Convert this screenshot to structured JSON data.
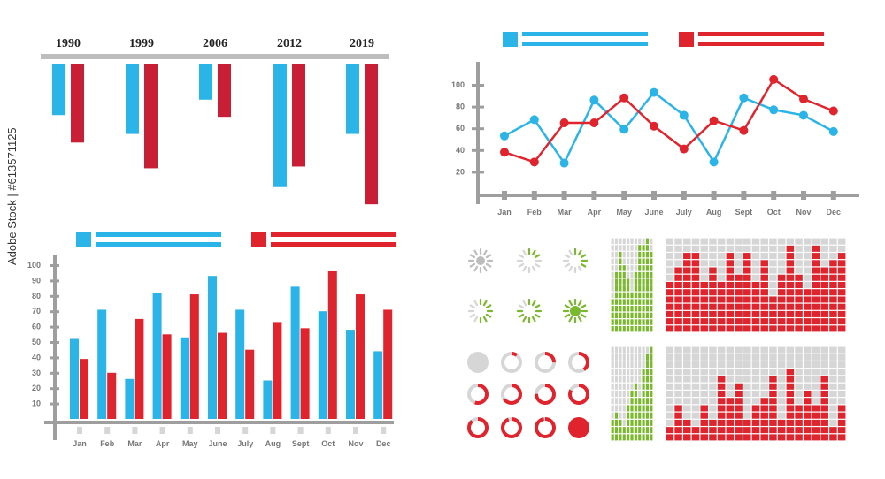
{
  "colors": {
    "blue": "#2ab4e8",
    "red": "#e0242e",
    "dark_red": "#c81f37",
    "green": "#7ab82e",
    "gray": "#bdbdbd",
    "light_gray": "#d6d6d6",
    "axis": "#9e9e9e"
  },
  "watermark": "Adobe Stock | #613571125",
  "chart_data": [
    {
      "type": "bar",
      "orientation": "downward",
      "categories": [
        "1990",
        "1999",
        "2006",
        "2012",
        "2019"
      ],
      "series": [
        {
          "values": [
            30,
            41,
            21,
            72,
            41
          ]
        },
        {
          "values": [
            46,
            61,
            31,
            60,
            82
          ]
        }
      ],
      "ylim": [
        0,
        85
      ]
    },
    {
      "type": "line",
      "categories": [
        "Jan",
        "Feb",
        "Mar",
        "Apr",
        "May",
        "June",
        "July",
        "Aug",
        "Sept",
        "Oct",
        "Nov",
        "Dec"
      ],
      "yticks": [
        20,
        40,
        60,
        80,
        100
      ],
      "ylim": [
        0,
        110
      ],
      "series": [
        {
          "values": [
            53,
            68,
            28,
            86,
            59,
            93,
            72,
            29,
            88,
            77,
            72,
            57
          ]
        },
        {
          "values": [
            38,
            29,
            65,
            65,
            88,
            62,
            41,
            67,
            58,
            105,
            87,
            76
          ]
        }
      ]
    },
    {
      "type": "bar",
      "categories": [
        "Jan",
        "Feb",
        "Mar",
        "Apr",
        "May",
        "June",
        "July",
        "Aug",
        "Sept",
        "Oct",
        "Nov",
        "Dec"
      ],
      "yticks": [
        10,
        20,
        30,
        40,
        50,
        60,
        70,
        80,
        90,
        100
      ],
      "ylim": [
        0,
        100
      ],
      "series": [
        {
          "values": [
            52,
            71,
            26,
            82,
            53,
            93,
            71,
            25,
            86,
            70,
            58,
            44
          ]
        },
        {
          "values": [
            39,
            30,
            65,
            55,
            81,
            56,
            45,
            63,
            59,
            96,
            81,
            71
          ]
        }
      ]
    },
    {
      "type": "heatmap",
      "description_levels": "column fill levels",
      "grids": [
        {
          "color": "green",
          "columns": 11,
          "rows": 14,
          "levels": [
            5,
            9,
            12,
            10,
            8,
            6,
            9,
            13,
            13,
            14,
            12
          ]
        },
        {
          "color": "red",
          "columns": 21,
          "rows": 13,
          "levels": [
            7,
            9,
            11,
            11,
            7,
            9,
            7,
            11,
            8,
            11,
            7,
            10,
            5,
            8,
            12,
            8,
            6,
            12,
            9,
            10,
            11
          ]
        },
        {
          "color": "green",
          "columns": 11,
          "rows": 13,
          "levels": [
            3,
            4,
            3,
            2,
            5,
            7,
            8,
            6,
            10,
            12,
            13
          ]
        },
        {
          "color": "red",
          "columns": 21,
          "rows": 13,
          "levels": [
            2,
            5,
            3,
            2,
            5,
            3,
            9,
            6,
            8,
            3,
            5,
            6,
            9,
            3,
            10,
            5,
            7,
            5,
            9,
            2,
            5
          ]
        }
      ]
    },
    {
      "type": "progress-indicators",
      "spinners_lit_segments": [
        0,
        3,
        5,
        7,
        10,
        12
      ],
      "ring_fill_percent": [
        0,
        10,
        25,
        40,
        55,
        65,
        75,
        82,
        88,
        94,
        97,
        100
      ]
    }
  ]
}
